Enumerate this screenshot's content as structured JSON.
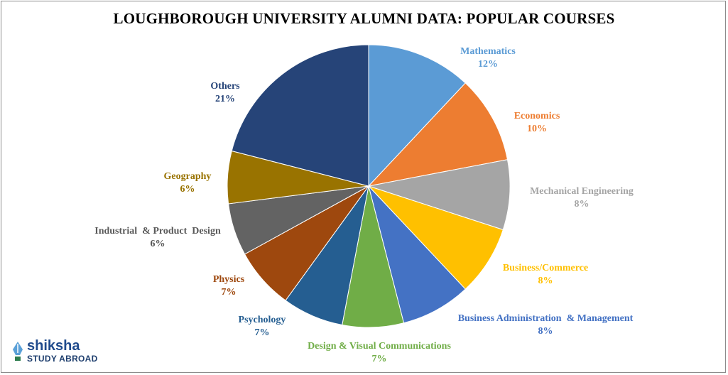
{
  "chart_data": {
    "type": "pie",
    "title": "LOUGHBOROUGH UNIVERSITY ALUMNI DATA:  POPULAR COURSES",
    "series": [
      {
        "name": "Mathematics",
        "label": "12%",
        "value": 12,
        "color": "#5b9bd5"
      },
      {
        "name": "Economics",
        "label": "10%",
        "value": 10,
        "color": "#ed7d31"
      },
      {
        "name": "Mechanical Engineering",
        "label": "8%",
        "value": 8,
        "color": "#a5a5a5"
      },
      {
        "name": "Business/Commerce",
        "label": "8%",
        "value": 8,
        "color": "#ffc000"
      },
      {
        "name": "Business Administration  & Management",
        "label": "8%",
        "value": 8,
        "color": "#4472c4"
      },
      {
        "name": "Design & Visual Communications",
        "label": "7%",
        "value": 7,
        "color": "#70ad47"
      },
      {
        "name": "Psychology",
        "label": "7%",
        "value": 7,
        "color": "#255e91"
      },
      {
        "name": "Physics",
        "label": "7%",
        "value": 7,
        "color": "#9e480e"
      },
      {
        "name": "Industrial  & Product  Design",
        "label": "6%",
        "value": 6,
        "color": "#636363"
      },
      {
        "name": "Geography",
        "label": "6%",
        "value": 6,
        "color": "#997300"
      },
      {
        "name": "Others",
        "label": "21%",
        "value": 21,
        "color": "#264478"
      }
    ],
    "label_colors": {
      "Mechanical Engineering": "#a5a5a5",
      "Industrial  & Product  Design": "#595959"
    }
  },
  "logo": {
    "name": "shiksha",
    "subtitle": "STUDY ABROAD"
  }
}
